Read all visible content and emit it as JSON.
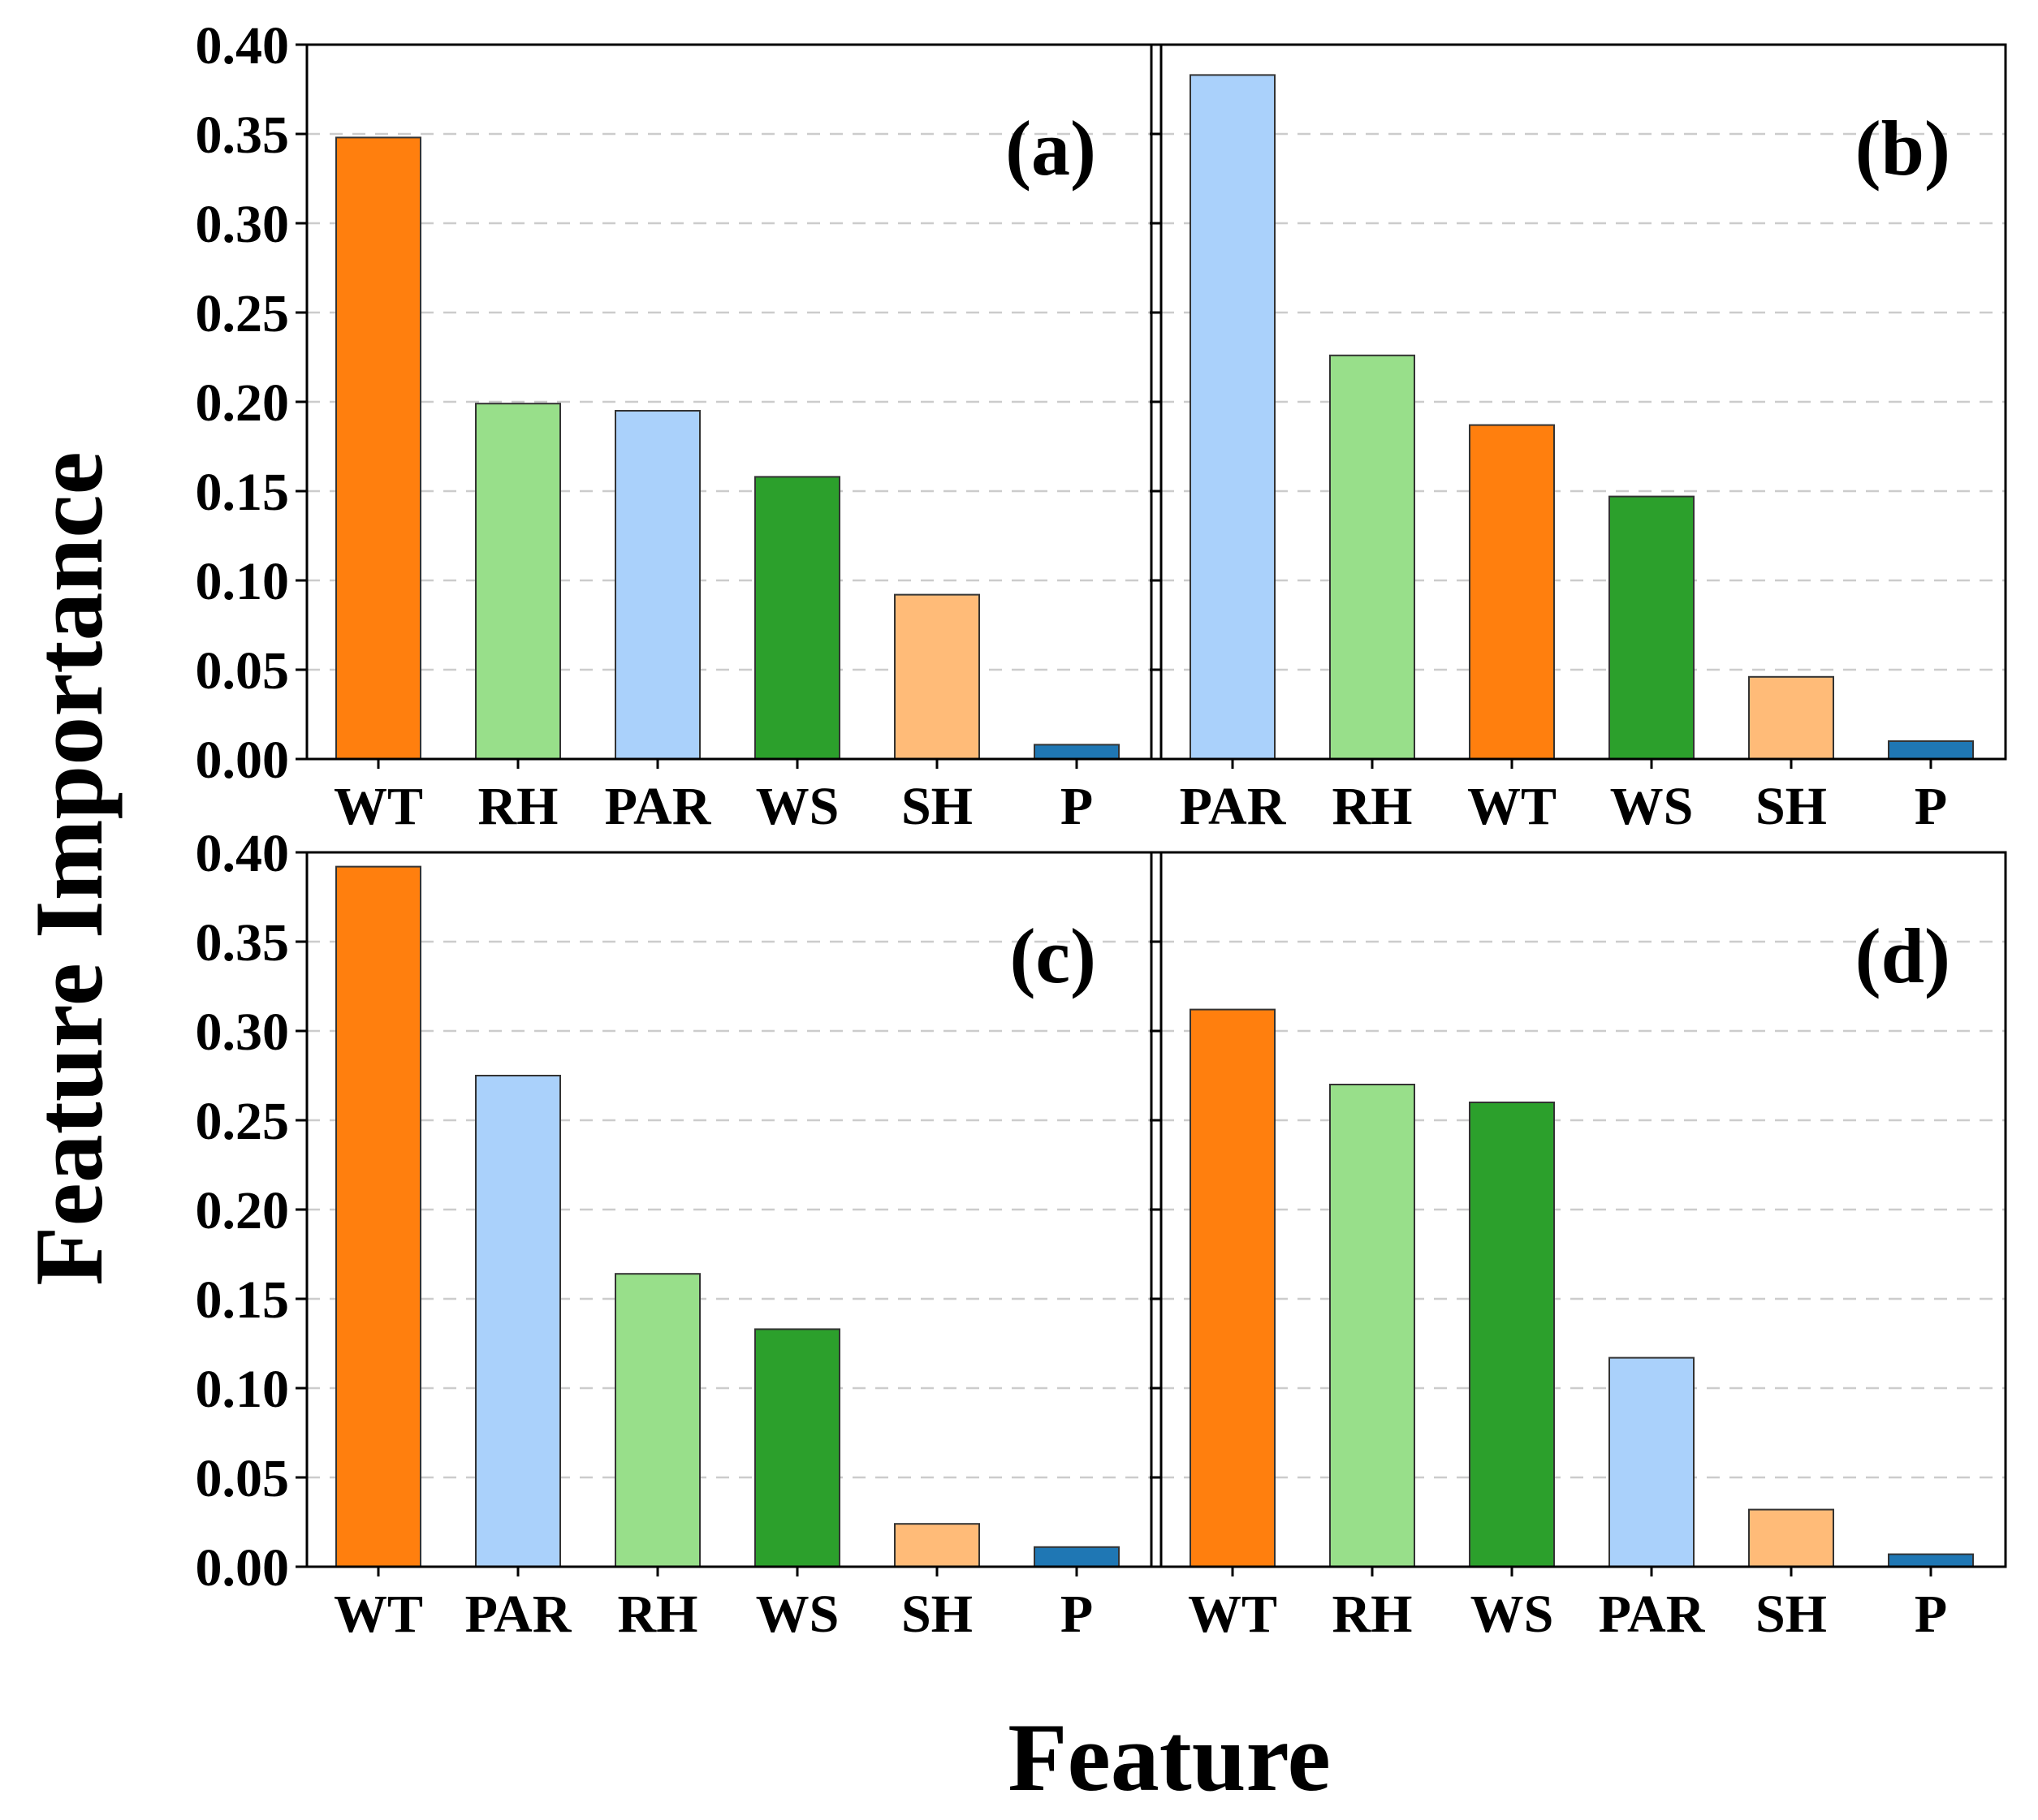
{
  "figure": {
    "ylabel": "Feature Importance",
    "xlabel": "Feature"
  },
  "colors": {
    "WT": "#ff7f0e",
    "RH": "#98df8a",
    "PAR": "#aad1fb",
    "WS": "#2ca02c",
    "SH": "#ffbb78",
    "P": "#1f77b4"
  },
  "chart_data": [
    {
      "type": "bar",
      "panel_label": "(a)",
      "categories": [
        "WT",
        "RH",
        "PAR",
        "WS",
        "SH",
        "P"
      ],
      "values": [
        0.348,
        0.199,
        0.195,
        0.158,
        0.092,
        0.008
      ],
      "ylim": [
        0,
        0.4
      ],
      "yticks": [
        "0.00",
        "0.05",
        "0.10",
        "0.15",
        "0.20",
        "0.25",
        "0.30",
        "0.35",
        "0.40"
      ],
      "grid": true
    },
    {
      "type": "bar",
      "panel_label": "(b)",
      "categories": [
        "PAR",
        "RH",
        "WT",
        "WS",
        "SH",
        "P"
      ],
      "values": [
        0.383,
        0.226,
        0.187,
        0.147,
        0.046,
        0.01
      ],
      "ylim": [
        0,
        0.4
      ],
      "yticks": [
        "0.00",
        "0.05",
        "0.10",
        "0.15",
        "0.20",
        "0.25",
        "0.30",
        "0.35",
        "0.40"
      ],
      "grid": true
    },
    {
      "type": "bar",
      "panel_label": "(c)",
      "categories": [
        "WT",
        "PAR",
        "RH",
        "WS",
        "SH",
        "P"
      ],
      "values": [
        0.392,
        0.275,
        0.164,
        0.133,
        0.024,
        0.011
      ],
      "ylim": [
        0,
        0.4
      ],
      "yticks": [
        "0.00",
        "0.05",
        "0.10",
        "0.15",
        "0.20",
        "0.25",
        "0.30",
        "0.35",
        "0.40"
      ],
      "grid": true
    },
    {
      "type": "bar",
      "panel_label": "(d)",
      "categories": [
        "WT",
        "RH",
        "WS",
        "PAR",
        "SH",
        "P"
      ],
      "values": [
        0.312,
        0.27,
        0.26,
        0.117,
        0.032,
        0.007
      ],
      "ylim": [
        0,
        0.4
      ],
      "yticks": [
        "0.00",
        "0.05",
        "0.10",
        "0.15",
        "0.20",
        "0.25",
        "0.30",
        "0.35",
        "0.40"
      ],
      "grid": true
    }
  ]
}
